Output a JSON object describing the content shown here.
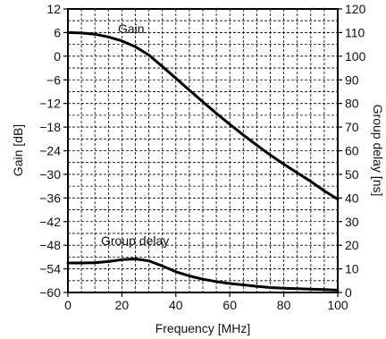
{
  "chart_data": {
    "type": "line",
    "title": "",
    "xlabel": "Frequency [MHz]",
    "ylabel_left": "Gain [dB]",
    "ylabel_right": "Group delay [ns]",
    "xlim": [
      0,
      100
    ],
    "ylim_left": [
      -60,
      12
    ],
    "ylim_right": [
      0,
      120
    ],
    "grid": true,
    "grid_style": "dashed",
    "x_ticks": [
      0,
      20,
      40,
      60,
      80,
      100
    ],
    "x_tick_labels": [
      "0",
      "20",
      "40",
      "60",
      "80",
      "100"
    ],
    "y_left_ticks": [
      12,
      6,
      0,
      -6,
      -12,
      -18,
      -24,
      -30,
      -36,
      -42,
      -48,
      -54,
      -60
    ],
    "y_left_tick_labels": [
      "12",
      "6",
      "0",
      "−6",
      "−12",
      "−18",
      "−24",
      "−30",
      "−36",
      "−42",
      "−48",
      "−54",
      "−60"
    ],
    "y_right_ticks": [
      120,
      110,
      100,
      90,
      80,
      70,
      60,
      50,
      40,
      30,
      20,
      10,
      0
    ],
    "y_right_tick_labels": [
      "120",
      "110",
      "100",
      "90",
      "80",
      "70",
      "60",
      "50",
      "40",
      "30",
      "20",
      "10",
      "0"
    ],
    "annotations": {
      "gain": "Gain",
      "group_delay": "Group delay"
    },
    "series": [
      {
        "axis": "left",
        "line_color": "#000000",
        "x": [
          0,
          5,
          10,
          15,
          20,
          25,
          30,
          35,
          40,
          45,
          50,
          55,
          60,
          65,
          70,
          75,
          80,
          85,
          90,
          95,
          100
        ],
        "y": [
          6,
          5.9,
          5.6,
          4.9,
          3.9,
          2.4,
          0.3,
          -2.6,
          -5.6,
          -8.6,
          -11.6,
          -14.5,
          -17.3,
          -20,
          -22.6,
          -25.1,
          -27.4,
          -29.6,
          -31.8,
          -34.2,
          -36.3
        ]
      },
      {
        "axis": "right",
        "line_color": "#000000",
        "x": [
          0,
          5,
          10,
          15,
          20,
          25,
          30,
          35,
          40,
          45,
          50,
          55,
          60,
          65,
          70,
          75,
          80,
          85,
          90,
          95,
          100
        ],
        "y": [
          12.5,
          12.5,
          12.6,
          13.1,
          13.9,
          14.2,
          13.4,
          11.2,
          8.8,
          7.0,
          5.6,
          4.6,
          3.8,
          3.2,
          2.6,
          2.1,
          1.8,
          1.6,
          1.4,
          1.2,
          1.0
        ]
      }
    ]
  }
}
